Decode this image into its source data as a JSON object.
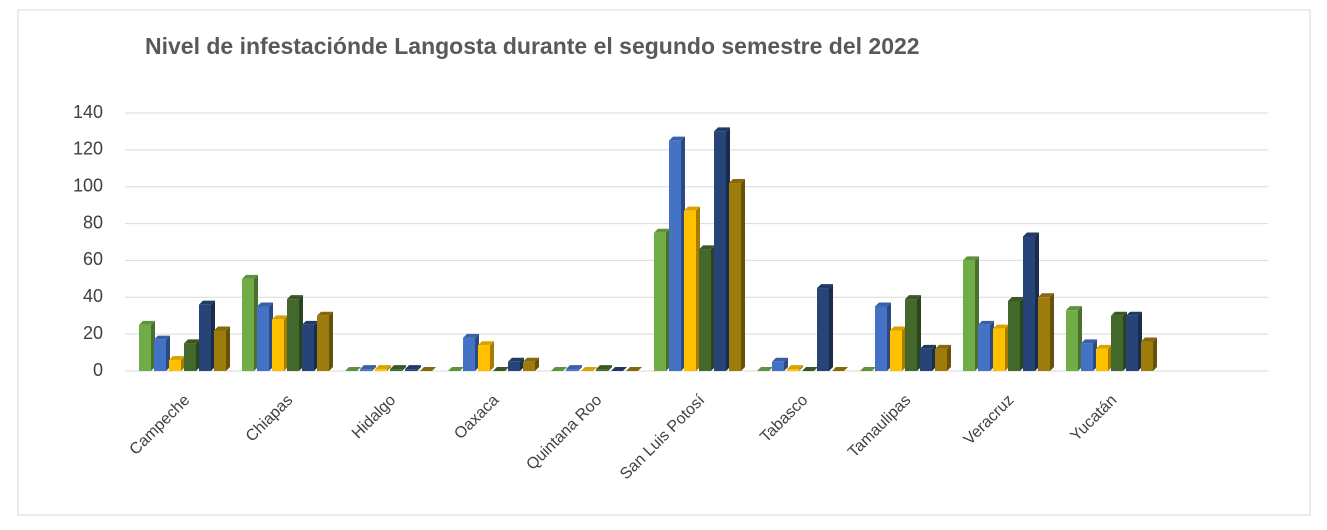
{
  "chart_data": {
    "type": "bar",
    "title": "Nivel de infestaciónde Langosta durante el segundo semestre del 2022",
    "categories": [
      "Campeche",
      "Chiapas",
      "Hidalgo",
      "Oaxaca",
      "Quintana Roo",
      "San Luis Potosí",
      "Tabasco",
      "Tamaulipas",
      "Veracruz",
      "Yucatán"
    ],
    "series": [
      {
        "color": "#70ad47",
        "values": [
          25,
          50,
          0,
          0,
          0,
          75,
          0,
          0,
          60,
          33
        ]
      },
      {
        "color": "#4472c4",
        "values": [
          17,
          35,
          1,
          18,
          1,
          125,
          5,
          35,
          25,
          15
        ]
      },
      {
        "color": "#ffc000",
        "values": [
          6,
          28,
          1,
          14,
          0,
          87,
          1,
          22,
          23,
          12
        ]
      },
      {
        "color": "#43682b",
        "values": [
          15,
          39,
          1,
          0,
          1,
          66,
          0,
          39,
          38,
          30
        ]
      },
      {
        "color": "#264478",
        "values": [
          36,
          25,
          1,
          5,
          0,
          130,
          45,
          12,
          73,
          30
        ]
      },
      {
        "color": "#9e7c0c",
        "values": [
          22,
          30,
          0,
          5,
          0,
          102,
          0,
          12,
          40,
          16
        ]
      }
    ],
    "ylim": [
      0,
      140
    ],
    "yticks": [
      0,
      20,
      40,
      60,
      80,
      100,
      120,
      140
    ],
    "grid": true
  }
}
